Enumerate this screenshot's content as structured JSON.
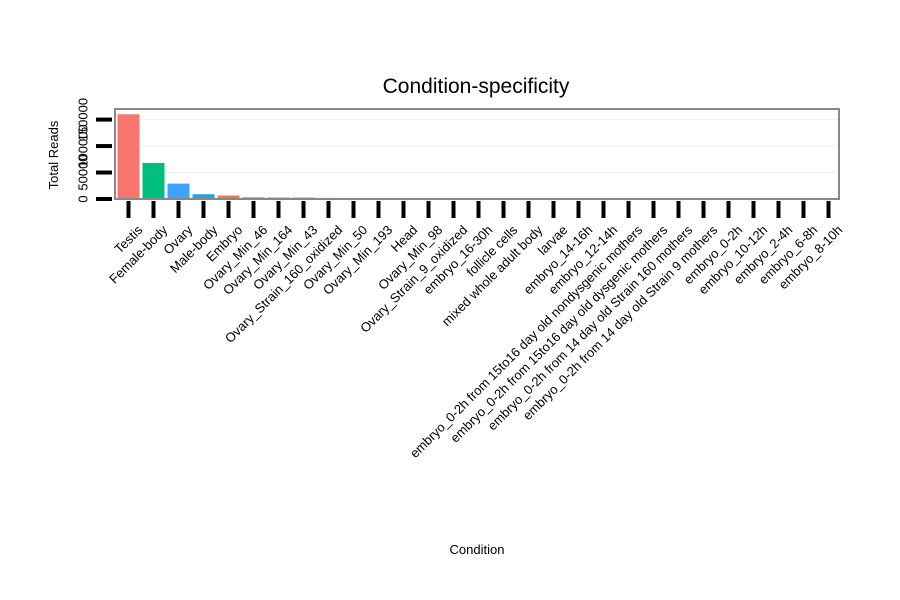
{
  "chart_data": {
    "type": "bar",
    "title": "Condition-specificity",
    "xlabel": "Condition",
    "ylabel": "Total Reads",
    "ylim": [
      0,
      170000
    ],
    "yticks": [
      0,
      50000,
      100000,
      150000
    ],
    "ytick_labels": [
      "0",
      "50000",
      "100000",
      "150000"
    ],
    "categories": [
      "Testis",
      "Female-body",
      "Ovary",
      "Male-body",
      "Embryo",
      "Ovary_Min_46",
      "Ovary_Min_164",
      "Ovary_Min_43",
      "Ovary_Strain_160_oxidized",
      "Ovary_Min_50",
      "Ovary_Min_193",
      "Head",
      "Ovary_Min_98",
      "Ovary_Strain_9_oxidized",
      "embryo_16-30h",
      "follicle cells",
      "mixed whole adult body",
      "larvae",
      "embryo_14-16h",
      "embryo_12-14h",
      "embryo_0-2h from 15to16 day old nondysgenic mothers",
      "embryo_0-2h from 15to16 day old dysgenic mothers",
      "embryo_0-2h from 14 day old Strain 160 mothers",
      "embryo_0-2h from 14 day old Strain 9 mothers",
      "embryo_0-2h",
      "embryo_10-12h",
      "embryo_2-4h",
      "embryo_6-8h",
      "embryo_8-10h"
    ],
    "values": [
      160000,
      68000,
      29000,
      9000,
      6500,
      3500,
      3000,
      3000,
      2000,
      1800,
      1700,
      1600,
      1500,
      1200,
      300,
      200,
      150,
      100,
      80,
      60,
      50,
      40,
      40,
      30,
      30,
      20,
      20,
      20,
      10
    ],
    "colors": [
      "#f8766d",
      "#00bf7d",
      "#3ea4ff",
      "#23a3e6",
      "#f0735c",
      "#e76bf3",
      "#a78bfa",
      "#c77cff",
      "#8f8fd0",
      "#9a9ad8",
      "#8e8ee0",
      "#18b47f",
      "#b08cf0",
      "#c08ae8",
      "#cccccc",
      "#cccccc",
      "#cccccc",
      "#cccccc",
      "#cccccc",
      "#cccccc",
      "#cccccc",
      "#cccccc",
      "#cccccc",
      "#cccccc",
      "#cccccc",
      "#cccccc",
      "#cccccc",
      "#cccccc",
      "#cccccc"
    ],
    "grid": true,
    "legend": "none"
  }
}
